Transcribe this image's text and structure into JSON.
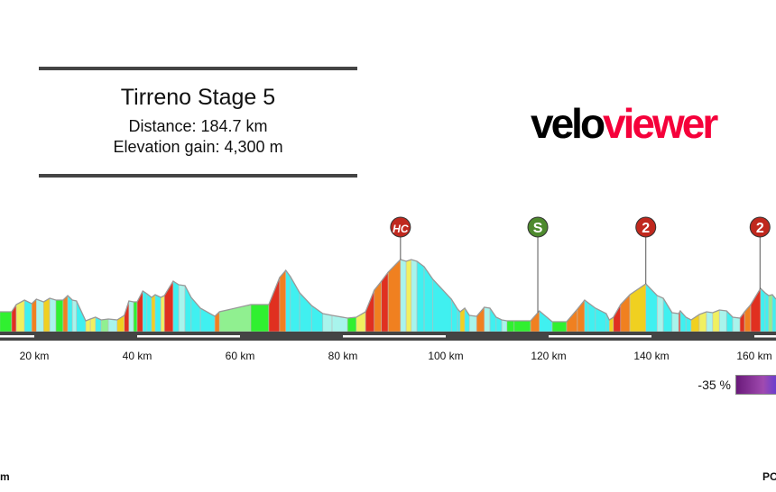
{
  "header": {
    "title": "Tirreno Stage 5",
    "distance": "Distance: 184.7 km",
    "elevation_gain": "Elevation gain: 4,300 m"
  },
  "logo": {
    "part1": "velo",
    "part2": "viewer",
    "colors": {
      "velo": "#000000",
      "viewer": "#f5003a"
    }
  },
  "chart_data": {
    "type": "area",
    "title": "Tirreno Stage 5",
    "xlabel": "",
    "ylabel": "",
    "x_ticks": [
      {
        "km": 20,
        "label": "20 km"
      },
      {
        "km": 40,
        "label": "40 km"
      },
      {
        "km": 60,
        "label": "60 km"
      },
      {
        "km": 80,
        "label": "80 km"
      },
      {
        "km": 100,
        "label": "100 km"
      },
      {
        "km": 120,
        "label": "120 km"
      },
      {
        "km": 140,
        "label": "140 km"
      },
      {
        "km": 160,
        "label": "160 km"
      }
    ],
    "visible_km_range": [
      13.3,
      164.2
    ],
    "elevation_profile_km_m": [
      [
        13.3,
        330
      ],
      [
        15.6,
        330
      ],
      [
        16.5,
        450
      ],
      [
        18.1,
        525
      ],
      [
        19.5,
        465
      ],
      [
        20.4,
        540
      ],
      [
        21.8,
        495
      ],
      [
        23.0,
        555
      ],
      [
        24.2,
        525
      ],
      [
        25.6,
        525
      ],
      [
        26.5,
        600
      ],
      [
        27.4,
        525
      ],
      [
        28.2,
        510
      ],
      [
        30.0,
        180
      ],
      [
        30.9,
        210
      ],
      [
        31.9,
        240
      ],
      [
        33.0,
        195
      ],
      [
        34.4,
        210
      ],
      [
        36.1,
        195
      ],
      [
        37.5,
        270
      ],
      [
        38.4,
        510
      ],
      [
        39.3,
        495
      ],
      [
        40.0,
        495
      ],
      [
        41.1,
        675
      ],
      [
        41.9,
        630
      ],
      [
        42.8,
        570
      ],
      [
        43.5,
        615
      ],
      [
        44.6,
        570
      ],
      [
        45.3,
        600
      ],
      [
        47.0,
        840
      ],
      [
        48.1,
        780
      ],
      [
        49.3,
        765
      ],
      [
        50.5,
        570
      ],
      [
        52.3,
        390
      ],
      [
        55.1,
        255
      ],
      [
        56.0,
        330
      ],
      [
        62.1,
        450
      ],
      [
        65.6,
        450
      ],
      [
        67.7,
        900
      ],
      [
        68.9,
        1020
      ],
      [
        69.8,
        915
      ],
      [
        71.6,
        645
      ],
      [
        73.9,
        435
      ],
      [
        76.1,
        300
      ],
      [
        77.9,
        270
      ],
      [
        80.9,
        225
      ],
      [
        82.6,
        240
      ],
      [
        84.4,
        330
      ],
      [
        86.1,
        690
      ],
      [
        87.5,
        840
      ],
      [
        88.8,
        990
      ],
      [
        91.2,
        1200
      ],
      [
        92.3,
        1170
      ],
      [
        93.3,
        1200
      ],
      [
        94.4,
        1170
      ],
      [
        95.8,
        1080
      ],
      [
        97.5,
        870
      ],
      [
        101.1,
        540
      ],
      [
        102.3,
        375
      ],
      [
        102.8,
        330
      ],
      [
        103.7,
        390
      ],
      [
        104.6,
        270
      ],
      [
        106.0,
        255
      ],
      [
        107.5,
        405
      ],
      [
        108.6,
        390
      ],
      [
        109.8,
        240
      ],
      [
        110.9,
        195
      ],
      [
        111.9,
        180
      ],
      [
        113.3,
        180
      ],
      [
        116.5,
        180
      ],
      [
        118.2,
        345
      ],
      [
        120.7,
        165
      ],
      [
        123.5,
        165
      ],
      [
        125.6,
        375
      ],
      [
        127.0,
        525
      ],
      [
        127.7,
        480
      ],
      [
        129.1,
        390
      ],
      [
        131.2,
        300
      ],
      [
        131.8,
        195
      ],
      [
        132.6,
        240
      ],
      [
        134.0,
        450
      ],
      [
        135.8,
        615
      ],
      [
        138.9,
        795
      ],
      [
        141.1,
        600
      ],
      [
        142.3,
        555
      ],
      [
        144.0,
        315
      ],
      [
        145.3,
        300
      ],
      [
        145.6,
        345
      ],
      [
        146.7,
        240
      ],
      [
        147.7,
        195
      ],
      [
        149.3,
        285
      ],
      [
        150.7,
        330
      ],
      [
        151.9,
        315
      ],
      [
        153.2,
        360
      ],
      [
        154.6,
        345
      ],
      [
        155.8,
        240
      ],
      [
        157.2,
        225
      ],
      [
        158.1,
        330
      ],
      [
        159.3,
        450
      ],
      [
        161.2,
        720
      ],
      [
        162.1,
        645
      ],
      [
        162.8,
        600
      ],
      [
        163.5,
        615
      ],
      [
        164.2,
        540
      ]
    ],
    "climb_markers": [
      {
        "km": 91.2,
        "label": "HC",
        "color": "#c0281e"
      },
      {
        "km": 117.9,
        "label": "S",
        "color": "#4e8a2e"
      },
      {
        "km": 138.9,
        "label": "2",
        "color": "#c0281e"
      },
      {
        "km": 161.1,
        "label": "2",
        "color": "#c0281e"
      }
    ],
    "gradient_colors": {
      "descent": "#40f0f0",
      "flat": "#30f030",
      "gentle": "#90f090",
      "moderate": "#f0f060",
      "steep": "#f0d020",
      "very_steep": "#f08020",
      "extreme": "#e03020"
    }
  },
  "legend": {
    "min_label": "-35 %"
  },
  "footer": {
    "left": "m",
    "right": "PO"
  }
}
